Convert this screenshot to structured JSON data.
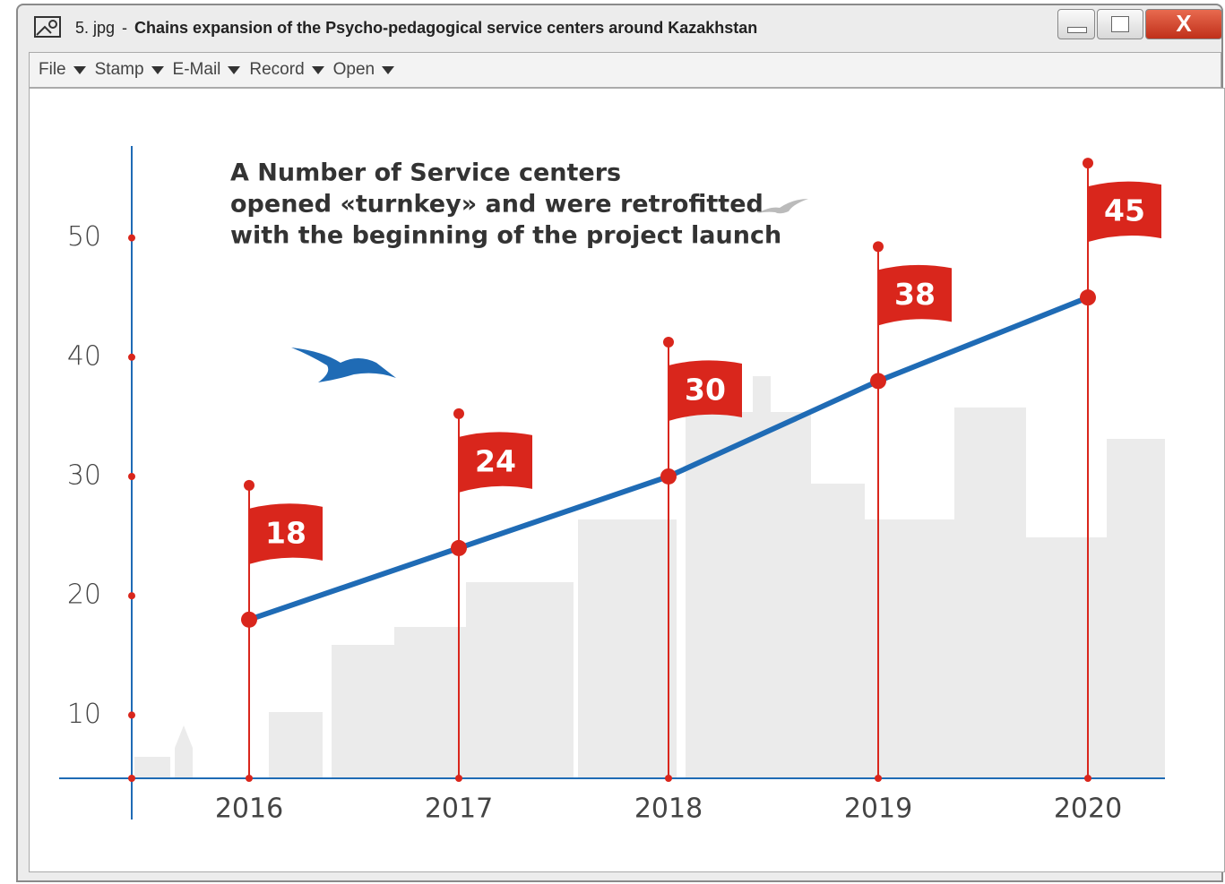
{
  "window": {
    "file": "5. jpg",
    "separator": "-",
    "title": "Chains expansion of the Psycho-pedagogical service centers around Kazakhstan",
    "close": "X"
  },
  "menu": [
    "File",
    "Stamp",
    "E-Mail",
    "Record",
    "Open"
  ],
  "chart_data": {
    "type": "line",
    "title": [
      "A Number of Service centers",
      "opened «turnkey» and were retrofitted",
      "with the beginning of the project launch"
    ],
    "categories": [
      "2016",
      "2017",
      "2018",
      "2019",
      "2020"
    ],
    "values": [
      18,
      24,
      30,
      38,
      45
    ],
    "color": "#1f6bb5",
    "flag_color": "#d9261c",
    "ylim": [
      4.7,
      57.7
    ],
    "yticks": [
      10,
      20,
      30,
      40,
      50
    ]
  }
}
